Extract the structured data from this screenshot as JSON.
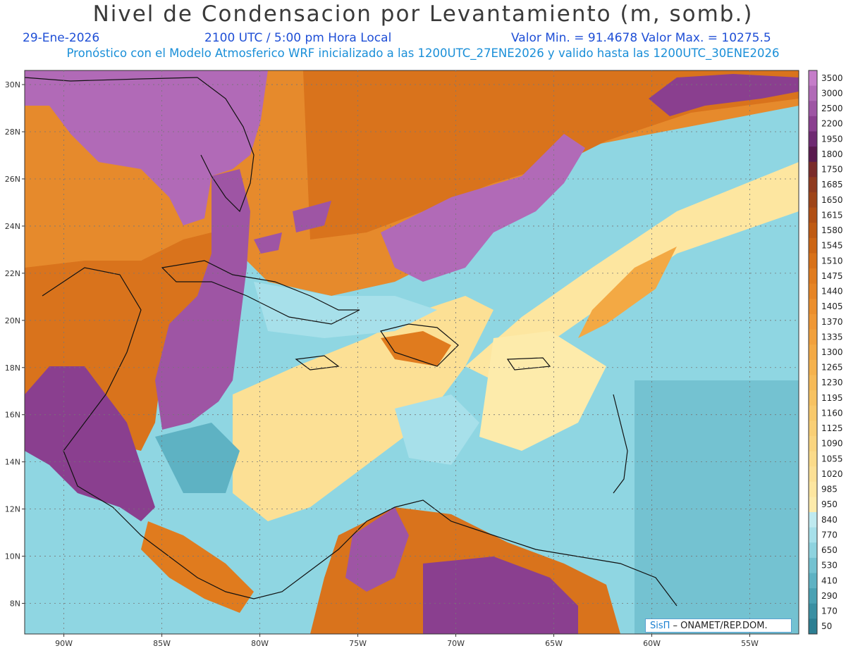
{
  "header": {
    "title": "Nivel de Condensacion por Levantamiento (m, somb.)",
    "date": "29-Ene-2026",
    "time": "2100 UTC / 5:00 pm Hora Local",
    "minmax": "Valor Min. = 91.4678  Valor Max. = 10275.5",
    "model_info": "Pronóstico con el Modelo Atmosferico WRF inicializado a las 1200UTC_27ENE2026 y valido hasta las  1200UTC_30ENE2026"
  },
  "axes": {
    "lat_labels": [
      "30N",
      "28N",
      "26N",
      "24N",
      "22N",
      "20N",
      "18N",
      "16N",
      "14N",
      "12N",
      "10N",
      "8N"
    ],
    "lat_values": [
      30,
      28,
      26,
      24,
      22,
      20,
      18,
      16,
      14,
      12,
      10,
      8
    ],
    "lon_labels": [
      "90W",
      "85W",
      "80W",
      "75W",
      "70W",
      "65W",
      "60W",
      "55W"
    ],
    "lon_values": [
      -90,
      -85,
      -80,
      -75,
      -70,
      -65,
      -60,
      -55
    ],
    "lat_range": [
      6.7,
      30.6
    ],
    "lon_range": [
      -92,
      -52.5
    ],
    "grid": "dotted"
  },
  "colorbar": {
    "levels": [
      "3500",
      "3000",
      "2500",
      "2200",
      "1950",
      "1800",
      "1750",
      "1685",
      "1650",
      "1615",
      "1580",
      "1545",
      "1510",
      "1475",
      "1440",
      "1405",
      "1370",
      "1335",
      "1300",
      "1265",
      "1230",
      "1195",
      "1160",
      "1125",
      "1090",
      "1055",
      "1020",
      "985",
      "950",
      "840",
      "770",
      "650",
      "530",
      "410",
      "290",
      "170",
      "50"
    ],
    "colors": [
      "#c57dc9",
      "#b16ab7",
      "#9e55a4",
      "#8a3f8f",
      "#6f2a72",
      "#5a1a4e",
      "#7a2b2a",
      "#8f3a1f",
      "#9e4418",
      "#b04e14",
      "#bf5a12",
      "#cc6514",
      "#d87118",
      "#e07b1e",
      "#e68424",
      "#eb8e2c",
      "#ef9734",
      "#f1a03c",
      "#f3a944",
      "#f5b24d",
      "#f6ba57",
      "#f7c261",
      "#f8c96b",
      "#f9cf75",
      "#fad57f",
      "#fbdb8a",
      "#fce095",
      "#fde6a0",
      "#fdebab",
      "#bfeaf0",
      "#a7e0ea",
      "#8ed3df",
      "#74c2d1",
      "#5eb2c3",
      "#4aa1b3",
      "#3a8fa2",
      "#2c7e92"
    ]
  },
  "map_regions": {
    "background": "#9fdde6",
    "land_outline": "#111111"
  },
  "credit": {
    "brand": "SisΠ",
    "text": " –  ONAMET/REP.DOM."
  }
}
